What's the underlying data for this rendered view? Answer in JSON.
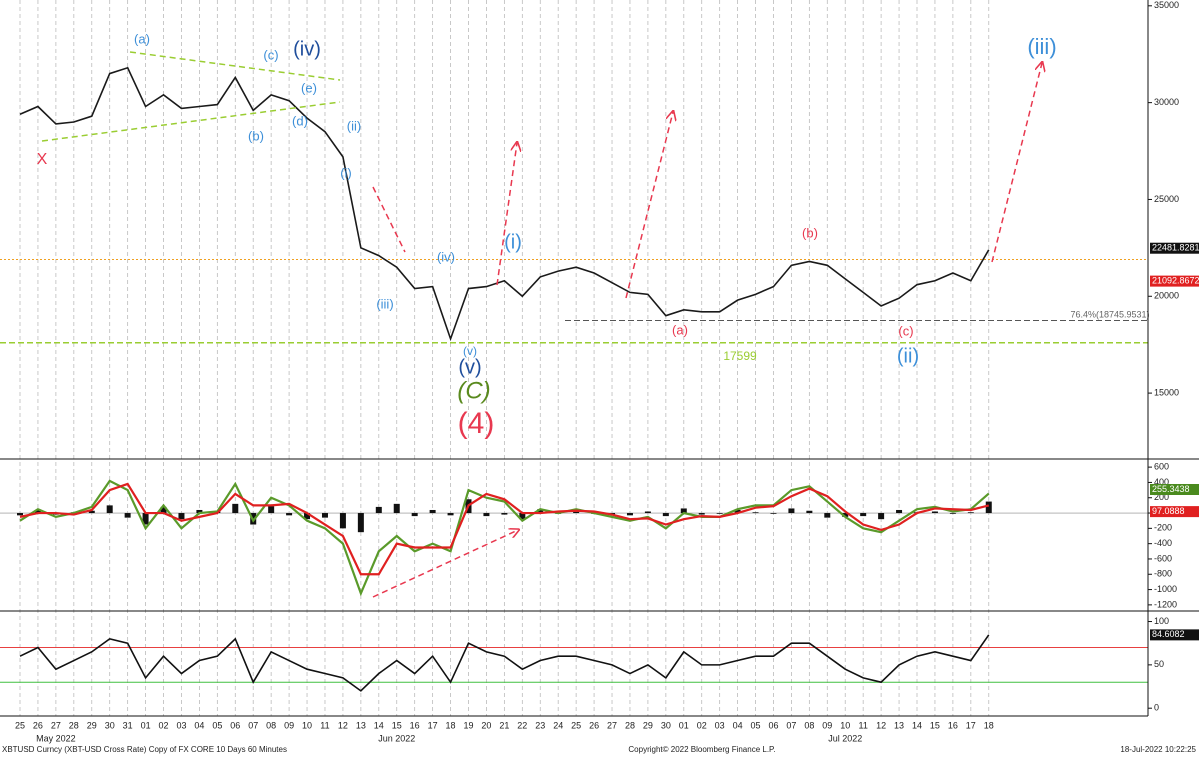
{
  "chart_data": [
    {
      "type": "line",
      "categories": [
        "25",
        "26",
        "27",
        "28",
        "29",
        "30",
        "31",
        "01",
        "02",
        "03",
        "04",
        "05",
        "06",
        "07",
        "08",
        "09",
        "10",
        "11",
        "12",
        "13",
        "14",
        "15",
        "16",
        "17",
        "18",
        "19",
        "20",
        "21",
        "22",
        "23",
        "24",
        "25",
        "26",
        "27",
        "28",
        "29",
        "30",
        "01",
        "02",
        "03",
        "04",
        "05",
        "06",
        "07",
        "08",
        "09",
        "10",
        "11",
        "12",
        "13",
        "14",
        "15",
        "16",
        "17",
        "18"
      ],
      "month_labels": [
        "May 2022",
        "Jun 2022",
        "Jul 2022"
      ],
      "series": [
        {
          "color": "#1a1a1a",
          "values": [
            29400,
            29800,
            28900,
            29000,
            29300,
            31500,
            31800,
            29800,
            30400,
            29700,
            29800,
            29900,
            31300,
            29600,
            30400,
            30100,
            29200,
            28500,
            27200,
            22500,
            22100,
            21500,
            20400,
            20500,
            17800,
            20400,
            20500,
            20800,
            20000,
            21000,
            21300,
            21500,
            21200,
            20700,
            20200,
            20100,
            19000,
            19300,
            19200,
            19200,
            19800,
            20100,
            20500,
            21600,
            21800,
            21600,
            20900,
            20200,
            19500,
            19900,
            20600,
            20800,
            21200,
            20800,
            22400
          ]
        }
      ],
      "ylim": [
        11700,
        35300
      ],
      "yticks": [
        15000,
        20000,
        25000,
        30000,
        35000
      ],
      "reference_lines": [
        {
          "value": 21900,
          "color": "#f0a020"
        },
        {
          "value": 18745.9531,
          "color": "#555555"
        },
        {
          "value": 17599,
          "color": "#9acd32"
        }
      ],
      "last_labels": [
        {
          "value": 22481.8281,
          "color": "#111111"
        },
        {
          "value": 21092.8672,
          "color": "#e02020"
        }
      ],
      "annotations": [
        {
          "text": "(a)",
          "color": "#3d8fd8"
        },
        {
          "text": "(c)",
          "color": "#3d8fd8"
        },
        {
          "text": "(iv)",
          "color": "#1f4e9c"
        },
        {
          "text": "X",
          "color": "#e8384f"
        },
        {
          "text": "(b)",
          "color": "#3d8fd8"
        },
        {
          "text": "(e)",
          "color": "#3d8fd8"
        },
        {
          "text": "(d)",
          "color": "#3d8fd8"
        },
        {
          "text": "(ii)",
          "color": "#3d8fd8"
        },
        {
          "text": "(i)",
          "color": "#3d8fd8"
        },
        {
          "text": "(iii)",
          "color": "#3d8fd8"
        },
        {
          "text": "(iv)",
          "color": "#3d8fd8"
        },
        {
          "text": "(i)",
          "color": "#3d8fd8"
        },
        {
          "text": "(v)",
          "color": "#3d8fd8"
        },
        {
          "text": "(v)",
          "color": "#1f4e9c"
        },
        {
          "text": "(C)",
          "color": "#5a8a1e"
        },
        {
          "text": "(4)",
          "color": "#e8384f"
        },
        {
          "text": "(a)",
          "color": "#e8384f"
        },
        {
          "text": "(b)",
          "color": "#e8384f"
        },
        {
          "text": "(c)",
          "color": "#e8384f"
        },
        {
          "text": "(ii)",
          "color": "#3d8fd8"
        },
        {
          "text": "(iii)",
          "color": "#3d8fd8"
        },
        {
          "text": "17599",
          "color": "#9acd32"
        },
        {
          "text": "76.4%(18745.9531)",
          "color": "#666666"
        }
      ],
      "footer": {
        "left": "XBTUSD Curncy (XBT-USD Cross Rate) Copy of FX CORE 10 Days 60 Minutes",
        "center": "Copyright© 2022 Bloomberg Finance L.P.",
        "right": "18-Jul-2022 10:22:25"
      }
    },
    {
      "type": "line",
      "series": [
        {
          "color": "#5a9a2a",
          "values": [
            -100,
            50,
            -50,
            0,
            80,
            420,
            300,
            -200,
            100,
            -200,
            0,
            20,
            380,
            -100,
            200,
            100,
            -100,
            -200,
            -400,
            -1050,
            -500,
            -300,
            -500,
            -400,
            -500,
            300,
            200,
            150,
            -100,
            50,
            0,
            50,
            0,
            -50,
            -100,
            -50,
            -200,
            0,
            -50,
            -50,
            50,
            100,
            100,
            300,
            350,
            150,
            -50,
            -200,
            -250,
            -100,
            50,
            80,
            20,
            50,
            255
          ]
        },
        {
          "color": "#e02020",
          "values": [
            -50,
            0,
            0,
            -20,
            40,
            300,
            380,
            0,
            0,
            -100,
            -50,
            0,
            250,
            100,
            100,
            120,
            0,
            -150,
            -300,
            -800,
            -800,
            -400,
            -450,
            -450,
            -450,
            100,
            250,
            180,
            0,
            0,
            20,
            30,
            20,
            -20,
            -80,
            -70,
            -150,
            -80,
            -40,
            -50,
            0,
            70,
            90,
            220,
            320,
            220,
            20,
            -150,
            -220,
            -150,
            0,
            60,
            50,
            40,
            100
          ]
        }
      ],
      "histogram": {
        "color": "#111111",
        "values": [
          -30,
          40,
          -20,
          10,
          30,
          100,
          -60,
          -150,
          80,
          -80,
          40,
          20,
          120,
          -150,
          90,
          -30,
          -80,
          -60,
          -200,
          -250,
          80,
          120,
          -40,
          40,
          -30,
          180,
          -40,
          -20,
          -80,
          50,
          -10,
          20,
          -10,
          -20,
          -30,
          20,
          -40,
          60,
          -20,
          -10,
          40,
          10,
          -10,
          60,
          30,
          -60,
          -50,
          -40,
          -80,
          40,
          10,
          20,
          -10,
          10,
          150
        ]
      },
      "ylim": [
        -1280,
        680
      ],
      "yticks": [
        600,
        400,
        200,
        0,
        -200,
        -400,
        -600,
        -800,
        -1000,
        -1200
      ],
      "last_labels": [
        {
          "value": 255.3438,
          "color": "#4a8a1e"
        },
        {
          "value": 97.0888,
          "color": "#e02020"
        }
      ]
    },
    {
      "type": "line",
      "series": [
        {
          "color": "#111111",
          "values": [
            60,
            70,
            45,
            55,
            65,
            80,
            75,
            35,
            60,
            40,
            55,
            60,
            80,
            30,
            65,
            55,
            45,
            40,
            35,
            20,
            40,
            55,
            40,
            60,
            30,
            75,
            65,
            60,
            45,
            55,
            60,
            60,
            55,
            50,
            40,
            50,
            35,
            65,
            50,
            50,
            55,
            60,
            60,
            75,
            75,
            60,
            45,
            35,
            30,
            50,
            60,
            65,
            60,
            55,
            84.6
          ]
        }
      ],
      "ylim": [
        -9,
        111
      ],
      "yticks": [
        0,
        50,
        100
      ],
      "reference_lines": [
        {
          "value": 70,
          "color": "#e84040"
        },
        {
          "value": 30,
          "color": "#40c040"
        }
      ],
      "last_labels": [
        {
          "value": 84.6082,
          "color": "#111111"
        }
      ]
    }
  ]
}
